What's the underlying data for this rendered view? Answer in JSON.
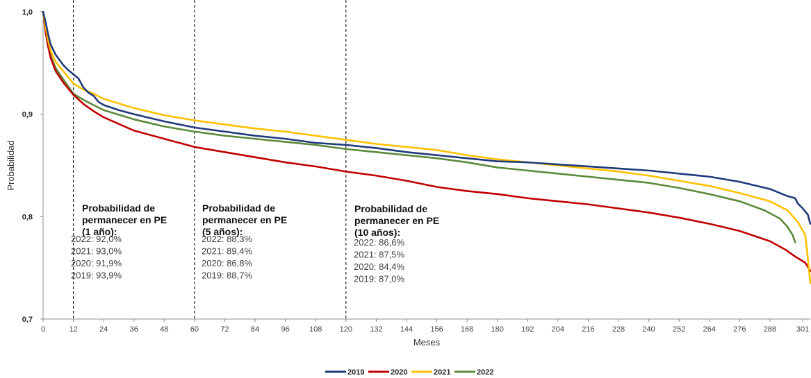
{
  "chart_data": {
    "type": "line",
    "title": "",
    "xlabel": "Meses",
    "ylabel": "Probabilidad",
    "xlim": [
      0,
      304
    ],
    "ylim": [
      0.7,
      1.0
    ],
    "x_ticks": [
      0,
      12,
      24,
      36,
      48,
      60,
      72,
      84,
      96,
      108,
      120,
      132,
      144,
      156,
      168,
      180,
      192,
      204,
      216,
      228,
      240,
      252,
      264,
      276,
      288,
      301
    ],
    "y_ticks": [
      {
        "value": 0.7,
        "label": "0,7"
      },
      {
        "value": 0.8,
        "label": "0,8"
      },
      {
        "value": 0.9,
        "label": "0,9"
      },
      {
        "value": 1.0,
        "label": "1,0"
      }
    ],
    "legend_position": "bottom-center",
    "series": [
      {
        "name": "2019",
        "color": "#1F3A7A",
        "points": [
          [
            0,
            1.0
          ],
          [
            1,
            0.99
          ],
          [
            2,
            0.978
          ],
          [
            3,
            0.968
          ],
          [
            5,
            0.958
          ],
          [
            8,
            0.948
          ],
          [
            10,
            0.943
          ],
          [
            12,
            0.939
          ],
          [
            14,
            0.935
          ],
          [
            16,
            0.926
          ],
          [
            18,
            0.921
          ],
          [
            20,
            0.918
          ],
          [
            22,
            0.912
          ],
          [
            24,
            0.909
          ],
          [
            30,
            0.904
          ],
          [
            36,
            0.9
          ],
          [
            48,
            0.893
          ],
          [
            60,
            0.887
          ],
          [
            72,
            0.883
          ],
          [
            84,
            0.879
          ],
          [
            96,
            0.876
          ],
          [
            108,
            0.872
          ],
          [
            120,
            0.87
          ],
          [
            132,
            0.867
          ],
          [
            144,
            0.863
          ],
          [
            156,
            0.86
          ],
          [
            168,
            0.857
          ],
          [
            180,
            0.854
          ],
          [
            192,
            0.853
          ],
          [
            204,
            0.851
          ],
          [
            216,
            0.849
          ],
          [
            228,
            0.847
          ],
          [
            240,
            0.845
          ],
          [
            252,
            0.842
          ],
          [
            264,
            0.839
          ],
          [
            276,
            0.834
          ],
          [
            288,
            0.827
          ],
          [
            295,
            0.82
          ],
          [
            298,
            0.818
          ],
          [
            299,
            0.813
          ],
          [
            301,
            0.808
          ],
          [
            303,
            0.802
          ],
          [
            304,
            0.793
          ]
        ]
      },
      {
        "name": "2020",
        "color": "#C00000",
        "points": [
          [
            0,
            1.0
          ],
          [
            1,
            0.98
          ],
          [
            2,
            0.966
          ],
          [
            3,
            0.955
          ],
          [
            5,
            0.942
          ],
          [
            8,
            0.931
          ],
          [
            10,
            0.925
          ],
          [
            12,
            0.919
          ],
          [
            16,
            0.91
          ],
          [
            20,
            0.903
          ],
          [
            24,
            0.897
          ],
          [
            36,
            0.884
          ],
          [
            48,
            0.876
          ],
          [
            60,
            0.868
          ],
          [
            72,
            0.863
          ],
          [
            84,
            0.858
          ],
          [
            96,
            0.853
          ],
          [
            108,
            0.849
          ],
          [
            120,
            0.844
          ],
          [
            132,
            0.84
          ],
          [
            144,
            0.835
          ],
          [
            156,
            0.829
          ],
          [
            168,
            0.825
          ],
          [
            180,
            0.822
          ],
          [
            192,
            0.818
          ],
          [
            204,
            0.815
          ],
          [
            216,
            0.812
          ],
          [
            228,
            0.808
          ],
          [
            240,
            0.804
          ],
          [
            252,
            0.799
          ],
          [
            264,
            0.793
          ],
          [
            276,
            0.786
          ],
          [
            288,
            0.776
          ],
          [
            294,
            0.768
          ],
          [
            298,
            0.761
          ],
          [
            302,
            0.755
          ],
          [
            304,
            0.747
          ]
        ]
      },
      {
        "name": "2021",
        "color": "#FFC000",
        "points": [
          [
            0,
            1.0
          ],
          [
            1,
            0.985
          ],
          [
            2,
            0.972
          ],
          [
            3,
            0.962
          ],
          [
            5,
            0.951
          ],
          [
            8,
            0.942
          ],
          [
            10,
            0.936
          ],
          [
            12,
            0.93
          ],
          [
            16,
            0.924
          ],
          [
            20,
            0.92
          ],
          [
            24,
            0.915
          ],
          [
            36,
            0.906
          ],
          [
            48,
            0.899
          ],
          [
            60,
            0.894
          ],
          [
            72,
            0.89
          ],
          [
            84,
            0.886
          ],
          [
            96,
            0.883
          ],
          [
            108,
            0.879
          ],
          [
            120,
            0.875
          ],
          [
            132,
            0.871
          ],
          [
            144,
            0.868
          ],
          [
            156,
            0.865
          ],
          [
            168,
            0.86
          ],
          [
            180,
            0.856
          ],
          [
            192,
            0.853
          ],
          [
            204,
            0.85
          ],
          [
            216,
            0.847
          ],
          [
            228,
            0.844
          ],
          [
            240,
            0.84
          ],
          [
            252,
            0.835
          ],
          [
            264,
            0.83
          ],
          [
            276,
            0.823
          ],
          [
            288,
            0.815
          ],
          [
            295,
            0.806
          ],
          [
            299,
            0.795
          ],
          [
            302,
            0.782
          ],
          [
            303,
            0.76
          ],
          [
            304,
            0.735
          ]
        ]
      },
      {
        "name": "2022",
        "color": "#5B8A3A",
        "points": [
          [
            0,
            1.0
          ],
          [
            1,
            0.982
          ],
          [
            2,
            0.968
          ],
          [
            3,
            0.957
          ],
          [
            5,
            0.945
          ],
          [
            8,
            0.934
          ],
          [
            10,
            0.927
          ],
          [
            12,
            0.92
          ],
          [
            16,
            0.914
          ],
          [
            20,
            0.909
          ],
          [
            24,
            0.904
          ],
          [
            36,
            0.895
          ],
          [
            48,
            0.888
          ],
          [
            60,
            0.883
          ],
          [
            72,
            0.879
          ],
          [
            84,
            0.876
          ],
          [
            96,
            0.873
          ],
          [
            108,
            0.87
          ],
          [
            120,
            0.866
          ],
          [
            132,
            0.863
          ],
          [
            144,
            0.86
          ],
          [
            156,
            0.857
          ],
          [
            168,
            0.853
          ],
          [
            180,
            0.848
          ],
          [
            192,
            0.845
          ],
          [
            204,
            0.842
          ],
          [
            216,
            0.839
          ],
          [
            228,
            0.836
          ],
          [
            240,
            0.833
          ],
          [
            252,
            0.828
          ],
          [
            264,
            0.822
          ],
          [
            276,
            0.815
          ],
          [
            286,
            0.806
          ],
          [
            292,
            0.798
          ],
          [
            295,
            0.79
          ],
          [
            297,
            0.782
          ],
          [
            298,
            0.775
          ]
        ]
      }
    ],
    "reference_lines": [
      12,
      60,
      120
    ],
    "annotations": [
      {
        "title": [
          "Probabilidad de",
          "permanecer en PE",
          "(1 año):"
        ],
        "values": [
          "2022: 92,0%",
          "2021: 93,0%",
          "2020: 91,9%",
          "2019: 93,9%"
        ]
      },
      {
        "title": [
          "Probabilidad de",
          "permanecer en PE",
          "(5 años):"
        ],
        "values": [
          "2022: 88,3%",
          "2021: 89,4%",
          "2020: 86,8%",
          "2019: 88,7%"
        ]
      },
      {
        "title": [
          "Probabilidad de",
          "permanecer en PE",
          "(10 años):"
        ],
        "values": [
          "2022: 86,6%",
          "2021: 87,5%",
          "2020: 84,4%",
          "2019: 87,0%"
        ]
      }
    ]
  }
}
